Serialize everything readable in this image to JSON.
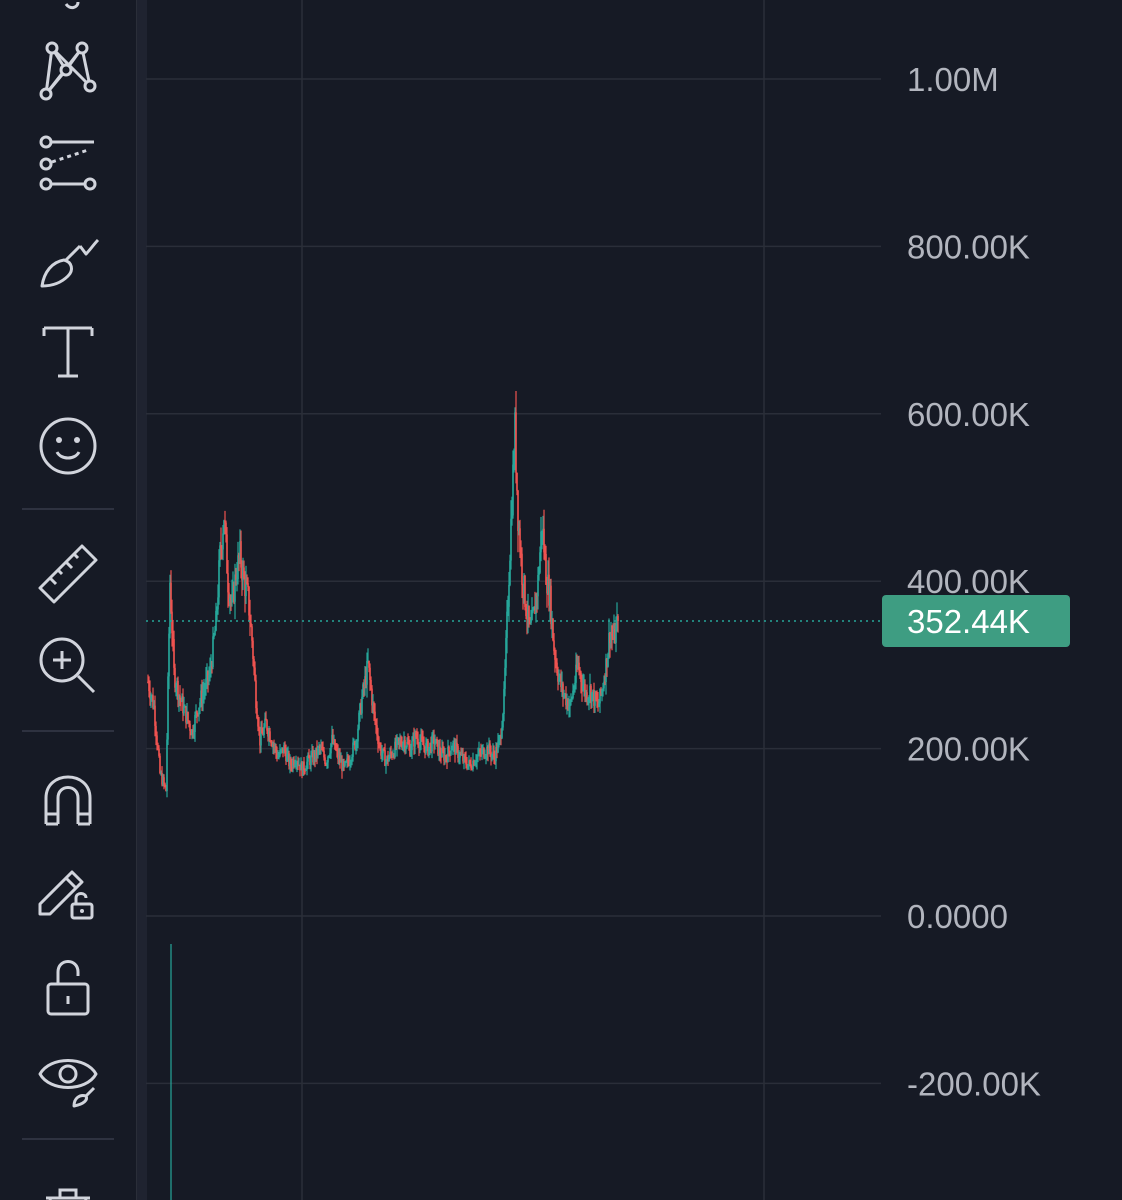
{
  "toolbar": {
    "tools": [
      {
        "id": "pattern-tool",
        "icon": "pattern-icon"
      },
      {
        "id": "projection-tool",
        "icon": "projection-icon"
      },
      {
        "id": "brush-tool",
        "icon": "brush-icon"
      },
      {
        "id": "text-tool",
        "icon": "text-icon"
      },
      {
        "id": "emoji-tool",
        "icon": "smiley-icon"
      },
      {
        "id": "measure-tool",
        "icon": "ruler-icon"
      },
      {
        "id": "zoom-in-tool",
        "icon": "zoom-in-icon"
      },
      {
        "id": "magnet-tool",
        "icon": "magnet-icon"
      },
      {
        "id": "stay-in-drawing-mode-tool",
        "icon": "pencil-lock-icon"
      },
      {
        "id": "lock-drawings-tool",
        "icon": "unlock-icon"
      },
      {
        "id": "hide-drawings-tool",
        "icon": "eye-icon"
      },
      {
        "id": "remove-drawings-tool",
        "icon": "trash-icon"
      }
    ]
  },
  "chart_data": {
    "type": "candlestick",
    "y_axis": {
      "ticks": [
        1000000,
        800000,
        600000,
        400000,
        200000,
        0,
        -200000
      ],
      "tick_labels": [
        "1.00M",
        "800.00K",
        "600.00K",
        "400.00K",
        "200.00K",
        "0.0000",
        "-200.00K"
      ]
    },
    "last_price": {
      "value": 352440,
      "label": "352.44K"
    },
    "colors": {
      "up": "#26a69a",
      "down": "#ef5350",
      "price_tag": "#3e9d82",
      "grid": "#2a2e39",
      "background": "#161a25"
    },
    "approximate_close_path": [
      [
        0,
        280000
      ],
      [
        6,
        250000
      ],
      [
        12,
        170000
      ],
      [
        18,
        150000
      ],
      [
        22,
        400000
      ],
      [
        26,
        290000
      ],
      [
        32,
        260000
      ],
      [
        38,
        240000
      ],
      [
        44,
        220000
      ],
      [
        50,
        250000
      ],
      [
        56,
        270000
      ],
      [
        62,
        290000
      ],
      [
        68,
        350000
      ],
      [
        72,
        430000
      ],
      [
        76,
        480000
      ],
      [
        80,
        400000
      ],
      [
        84,
        370000
      ],
      [
        88,
        410000
      ],
      [
        92,
        430000
      ],
      [
        96,
        400000
      ],
      [
        100,
        380000
      ],
      [
        104,
        330000
      ],
      [
        108,
        260000
      ],
      [
        112,
        210000
      ],
      [
        118,
        230000
      ],
      [
        124,
        210000
      ],
      [
        130,
        190000
      ],
      [
        136,
        200000
      ],
      [
        142,
        180000
      ],
      [
        148,
        190000
      ],
      [
        154,
        175000
      ],
      [
        160,
        185000
      ],
      [
        166,
        190000
      ],
      [
        172,
        200000
      ],
      [
        178,
        185000
      ],
      [
        184,
        210000
      ],
      [
        190,
        190000
      ],
      [
        196,
        175000
      ],
      [
        202,
        190000
      ],
      [
        208,
        210000
      ],
      [
        214,
        260000
      ],
      [
        220,
        300000
      ],
      [
        226,
        240000
      ],
      [
        232,
        200000
      ],
      [
        238,
        185000
      ],
      [
        244,
        195000
      ],
      [
        250,
        205000
      ],
      [
        256,
        210000
      ],
      [
        262,
        200000
      ],
      [
        268,
        215000
      ],
      [
        274,
        205000
      ],
      [
        280,
        200000
      ],
      [
        286,
        210000
      ],
      [
        292,
        195000
      ],
      [
        298,
        190000
      ],
      [
        304,
        205000
      ],
      [
        310,
        195000
      ],
      [
        316,
        185000
      ],
      [
        322,
        180000
      ],
      [
        328,
        190000
      ],
      [
        334,
        195000
      ],
      [
        340,
        200000
      ],
      [
        346,
        190000
      ],
      [
        352,
        210000
      ],
      [
        356,
        260000
      ],
      [
        360,
        380000
      ],
      [
        364,
        500000
      ],
      [
        367,
        580000
      ],
      [
        370,
        480000
      ],
      [
        374,
        410000
      ],
      [
        378,
        370000
      ],
      [
        382,
        340000
      ],
      [
        386,
        360000
      ],
      [
        390,
        400000
      ],
      [
        394,
        470000
      ],
      [
        398,
        410000
      ],
      [
        402,
        380000
      ],
      [
        406,
        320000
      ],
      [
        410,
        290000
      ],
      [
        414,
        270000
      ],
      [
        418,
        260000
      ],
      [
        422,
        250000
      ],
      [
        426,
        275000
      ],
      [
        430,
        300000
      ],
      [
        434,
        280000
      ],
      [
        438,
        265000
      ],
      [
        442,
        270000
      ],
      [
        446,
        260000
      ],
      [
        450,
        250000
      ],
      [
        454,
        270000
      ],
      [
        458,
        300000
      ],
      [
        462,
        340000
      ],
      [
        466,
        330000
      ],
      [
        470,
        352440
      ]
    ],
    "x_range_bars": 470
  }
}
